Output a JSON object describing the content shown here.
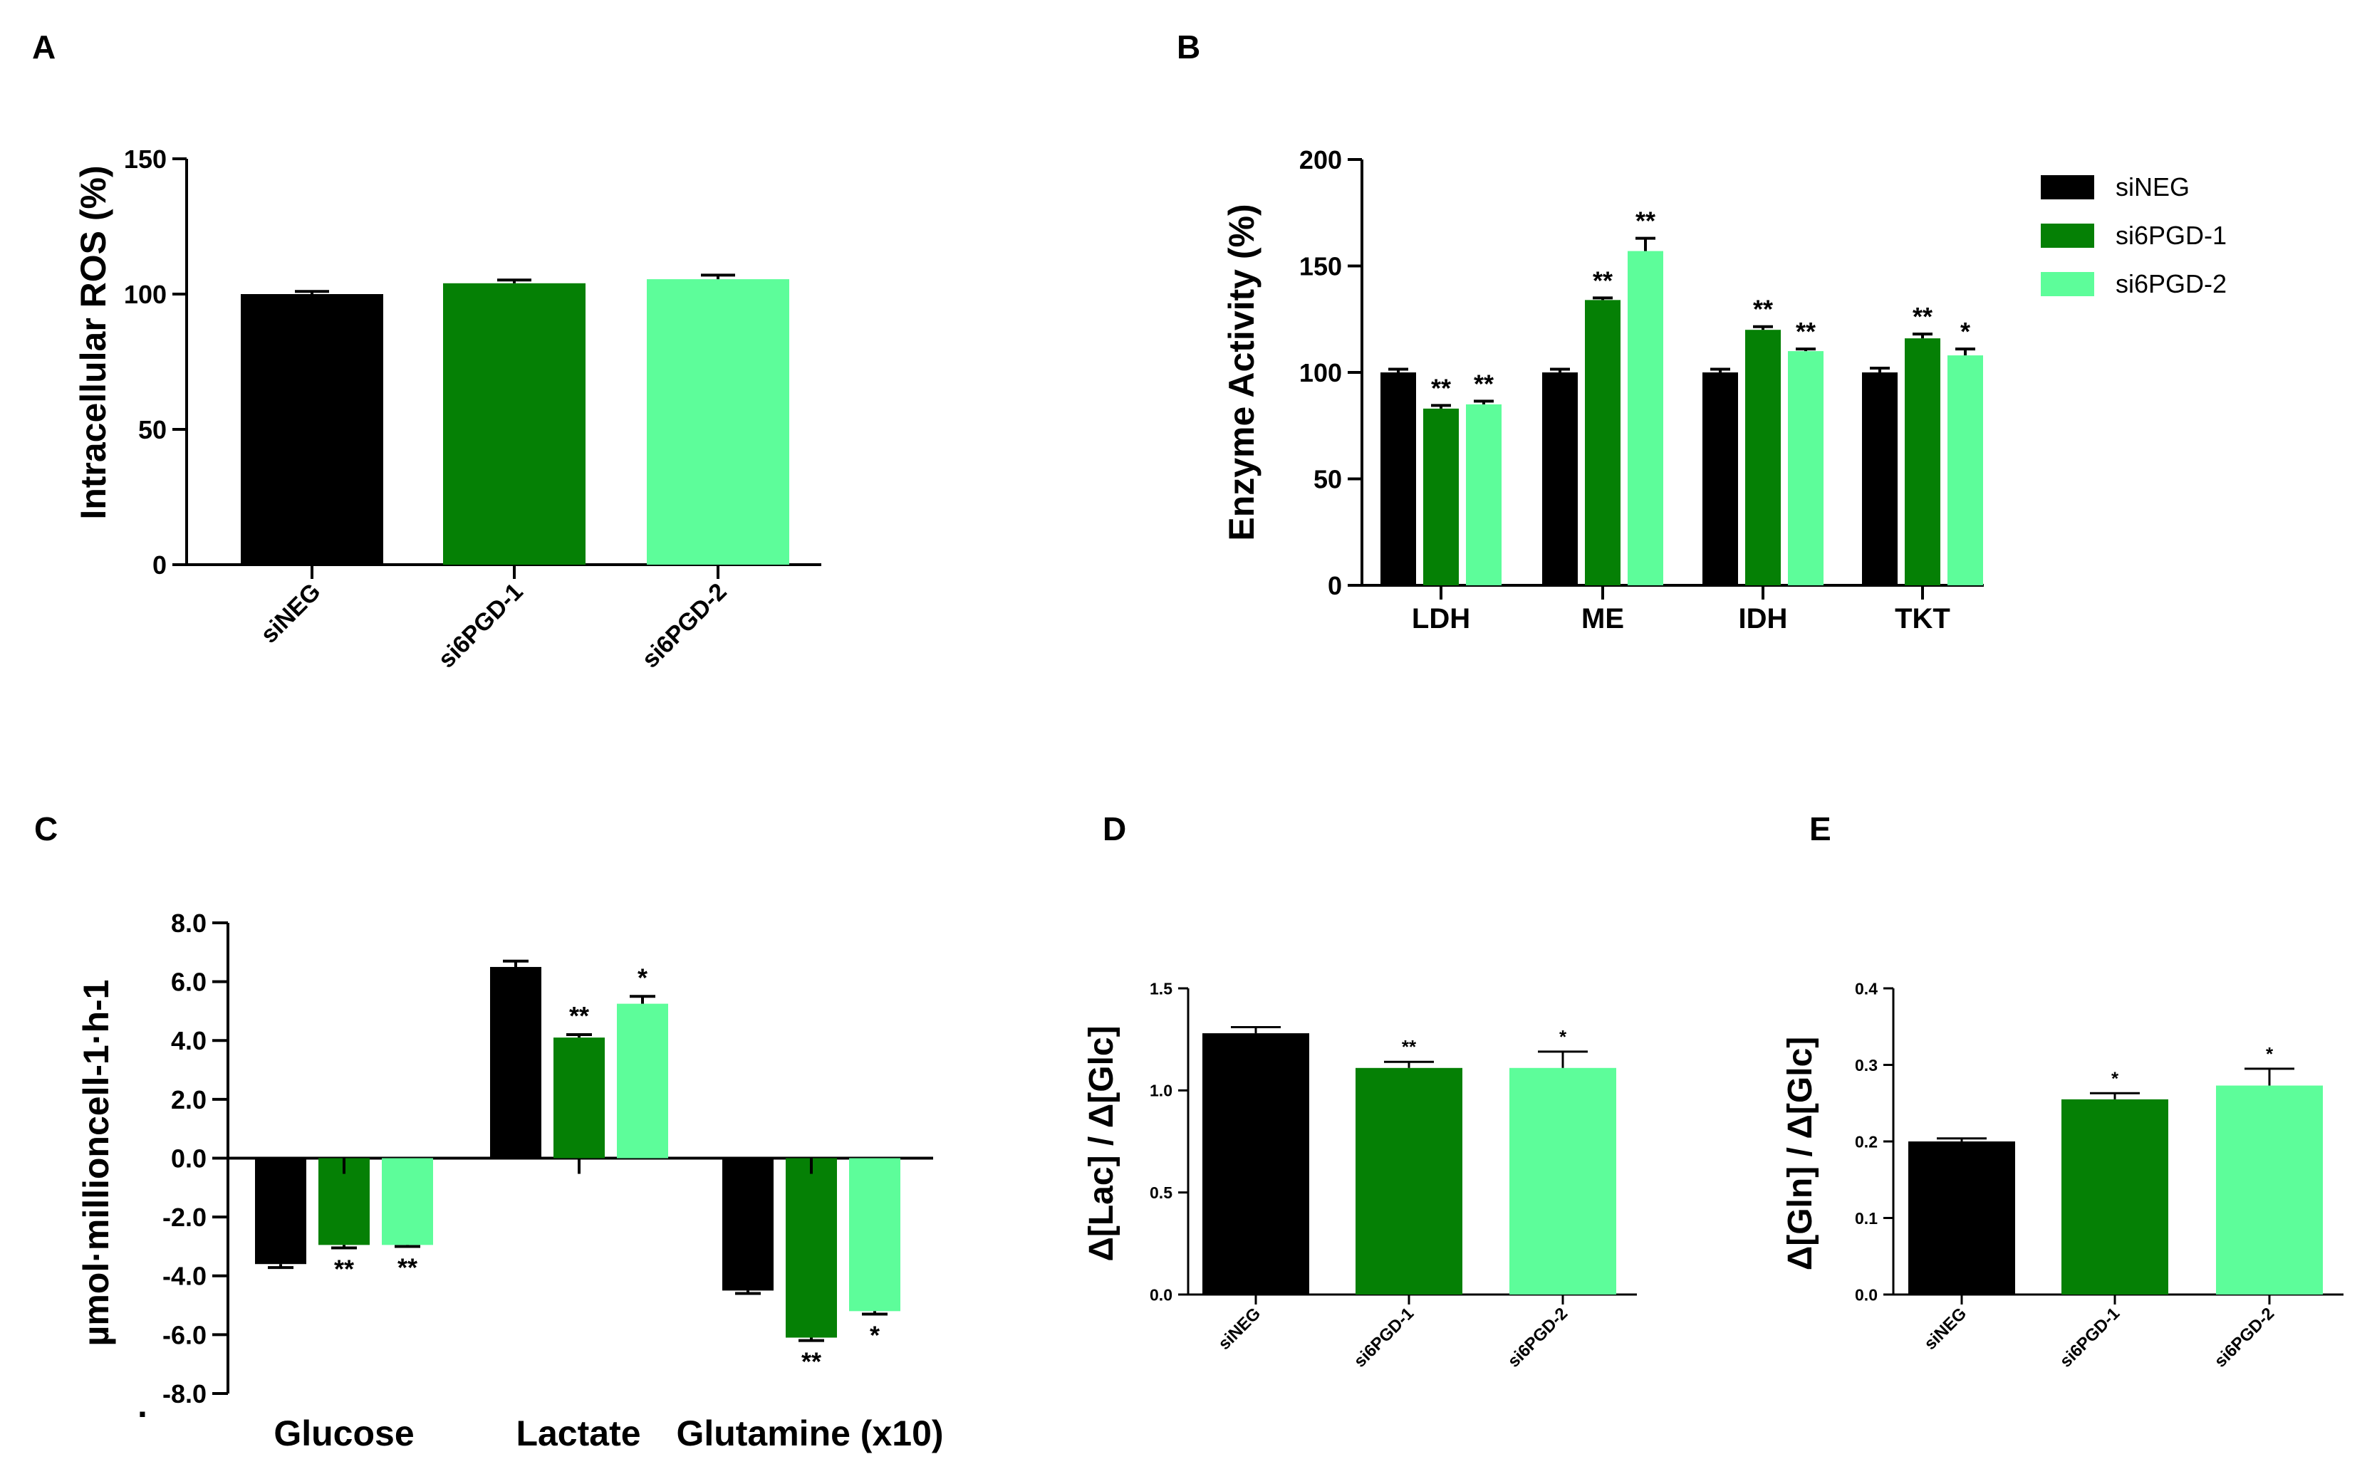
{
  "colors": {
    "siNEG": "#000000",
    "si6PGD-1": "#058005",
    "si6PGD-2": "#5dfd9a"
  },
  "legend": {
    "entries": [
      "siNEG",
      "si6PGD-1",
      "si6PGD-2"
    ]
  },
  "chart_data": [
    {
      "panel": "A",
      "type": "bar",
      "title": "",
      "xlabel": "",
      "ylabel": "Intracellular ROS (%)",
      "ylim": [
        0,
        150
      ],
      "yticks": [
        "0",
        "50",
        "100",
        "150"
      ],
      "categories": [
        "siNEG",
        "si6PGD-1",
        "si6PGD-2"
      ],
      "values": [
        100,
        104,
        105.5
      ],
      "errors": [
        1.0,
        1.2,
        1.5
      ],
      "sig": [
        "",
        "",
        ""
      ]
    },
    {
      "panel": "B",
      "type": "bar",
      "title": "",
      "xlabel": "",
      "ylabel": "Enzyme Activity (%)",
      "ylim": [
        0,
        200
      ],
      "yticks": [
        "0",
        "50",
        "100",
        "150",
        "200"
      ],
      "categories": [
        "LDH",
        "ME",
        "IDH",
        "TKT"
      ],
      "series": [
        {
          "name": "siNEG",
          "values": [
            100,
            100,
            100,
            100
          ],
          "errors": [
            1.5,
            1.5,
            1.5,
            2.0
          ],
          "sig": [
            "",
            "",
            "",
            ""
          ]
        },
        {
          "name": "si6PGD-1",
          "values": [
            83,
            134,
            120,
            116
          ],
          "errors": [
            1.5,
            1.0,
            1.5,
            2.0
          ],
          "sig": [
            "**",
            "**",
            "**",
            "**"
          ]
        },
        {
          "name": "si6PGD-2",
          "values": [
            85,
            157,
            110,
            108
          ],
          "errors": [
            1.5,
            6.0,
            1.0,
            3.0
          ],
          "sig": [
            "**",
            "**",
            "**",
            "*"
          ]
        }
      ],
      "legend_position": "top-right"
    },
    {
      "panel": "C",
      "type": "bar",
      "title": "",
      "xlabel": "",
      "ylabel": "µmol·millioncell-1·h-1",
      "ylim": [
        -8.0,
        8.0
      ],
      "yticks": [
        "-8.0",
        "-6.0",
        "-4.0",
        "-2.0",
        "0.0",
        "2.0",
        "4.0",
        "6.0",
        "8.0"
      ],
      "categories": [
        "Glucose",
        "Lactate",
        "Glutamine (x10)"
      ],
      "series": [
        {
          "name": "siNEG",
          "values": [
            -3.6,
            6.5,
            -4.5
          ],
          "errors": [
            0.12,
            0.2,
            0.1
          ],
          "sig": [
            "",
            "",
            ""
          ]
        },
        {
          "name": "si6PGD-1",
          "values": [
            -2.95,
            4.1,
            -6.1
          ],
          "errors": [
            0.1,
            0.1,
            0.1
          ],
          "sig": [
            "**",
            "**",
            "**"
          ]
        },
        {
          "name": "si6PGD-2",
          "values": [
            -2.95,
            5.25,
            -5.2
          ],
          "errors": [
            0.05,
            0.25,
            0.1
          ],
          "sig": [
            "**",
            "*",
            "*"
          ]
        }
      ],
      "stray_mark": "."
    },
    {
      "panel": "D",
      "type": "bar",
      "title": "",
      "xlabel": "",
      "ylabel": "Δ[Lac] / Δ[Glc]",
      "ylim": [
        0,
        1.5
      ],
      "yticks": [
        "0.0",
        "0.5",
        "1.0",
        "1.5"
      ],
      "categories": [
        "siNEG",
        "si6PGD-1",
        "si6PGD-2"
      ],
      "values": [
        1.28,
        1.11,
        1.11
      ],
      "errors": [
        0.03,
        0.03,
        0.08
      ],
      "sig": [
        "",
        "**",
        "*"
      ]
    },
    {
      "panel": "E",
      "type": "bar",
      "title": "",
      "xlabel": "",
      "ylabel": "Δ[Gln] / Δ[Glc]",
      "ylim": [
        0,
        0.4
      ],
      "yticks": [
        "0.0",
        "0.1",
        "0.2",
        "0.3",
        "0.4"
      ],
      "categories": [
        "siNEG",
        "si6PGD-1",
        "si6PGD-2"
      ],
      "values": [
        0.2,
        0.255,
        0.273
      ],
      "errors": [
        0.004,
        0.008,
        0.022
      ],
      "sig": [
        "",
        "*",
        "*"
      ]
    }
  ]
}
